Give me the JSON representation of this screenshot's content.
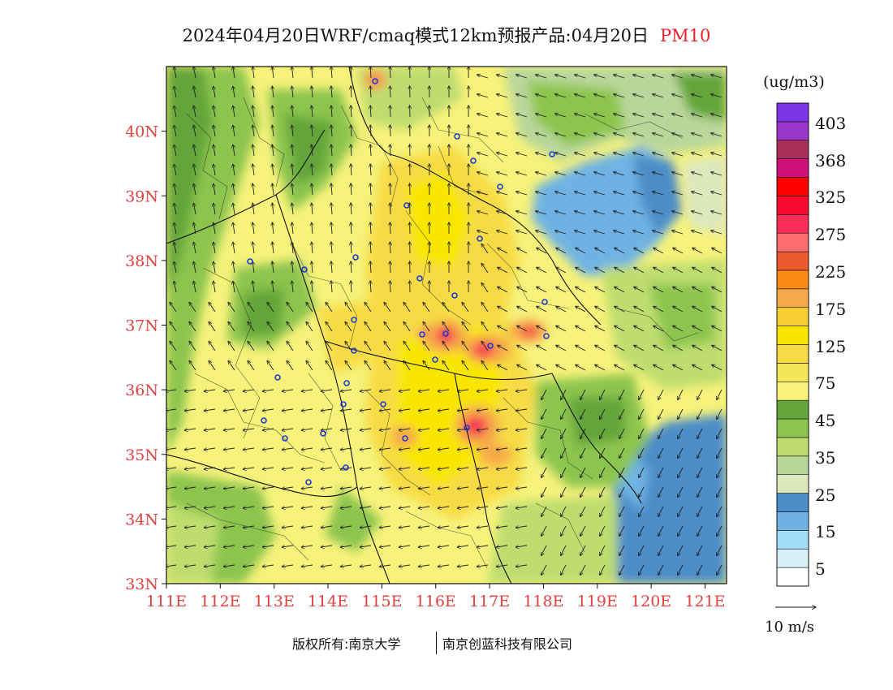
{
  "title": {
    "main": "2024年04月20日WRF/cmaq模式12km预报产品:04月20日",
    "product": "PM10"
  },
  "map": {
    "lon_ticks": [
      "111E",
      "112E",
      "113E",
      "114E",
      "115E",
      "116E",
      "117E",
      "118E",
      "119E",
      "120E",
      "121E"
    ],
    "lat_ticks": [
      "33N",
      "34N",
      "35N",
      "36N",
      "37N",
      "38N",
      "39N",
      "40N"
    ],
    "lon_range": [
      111,
      121.4
    ],
    "lat_range": [
      33,
      41
    ]
  },
  "colorbar": {
    "unit": "(ug/m3)",
    "labels": [
      "403",
      "368",
      "325",
      "275",
      "225",
      "175",
      "125",
      "75",
      "45",
      "35",
      "25",
      "15",
      "5"
    ],
    "colors": [
      "#ffffff",
      "#d8eff8",
      "#a3dcf6",
      "#6eb3e3",
      "#4b8dc7",
      "#dde8bd",
      "#b9d79a",
      "#bedd6e",
      "#8cc54d",
      "#63a53a",
      "#f6f27a",
      "#f5e75a",
      "#f7db45",
      "#f9e600",
      "#f8ce35",
      "#f5a94a",
      "#f98a14",
      "#ee5a2f",
      "#fb6e6e",
      "#f92d55",
      "#f80a2f",
      "#ff0000",
      "#d0107a",
      "#ab2e5a",
      "#9a35c9",
      "#7c34e6"
    ]
  },
  "vector_legend": {
    "label": "10 m/s"
  },
  "credit": {
    "left": "版权所有:南京大学",
    "right": "南京创蓝科技有限公司"
  }
}
